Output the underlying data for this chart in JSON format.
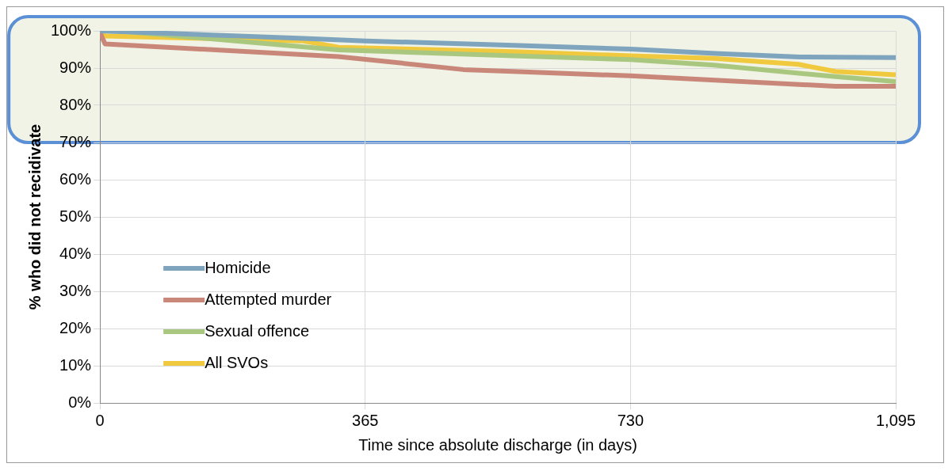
{
  "chart_data": {
    "type": "line",
    "xlabel": "Time since absolute discharge (in days)",
    "ylabel": "% who did not recidivate",
    "xlim": [
      0,
      1095
    ],
    "xticks": [
      0,
      365,
      730,
      {
        "value": 1095,
        "label": "1,095"
      }
    ],
    "ylim": [
      0,
      100
    ],
    "yticks": [
      {
        "value": 0,
        "label": "0%"
      },
      {
        "value": 10,
        "label": "10%"
      },
      {
        "value": 20,
        "label": "20%"
      },
      {
        "value": 30,
        "label": "30%"
      },
      {
        "value": 40,
        "label": "40%"
      },
      {
        "value": 50,
        "label": "50%"
      },
      {
        "value": 60,
        "label": "60%"
      },
      {
        "value": 70,
        "label": "70%"
      },
      {
        "value": 80,
        "label": "80%"
      },
      {
        "value": 90,
        "label": "90%"
      },
      {
        "value": 100,
        "label": "100%"
      }
    ],
    "grid": true,
    "legend": "bottom left",
    "marker": "none",
    "line_style": "solid",
    "bands": [
      {
        "axis": "y",
        "from": 70,
        "to": 100,
        "color": "#eef2e2"
      }
    ],
    "series": [
      {
        "name": "Homicide",
        "color": "#7fa4be",
        "x": [
          0,
          280,
          365,
          569,
          730,
          852,
          963,
          1095
        ],
        "values": [
          100,
          98,
          97.3,
          96.1,
          95.1,
          93.9,
          93,
          92.8
        ]
      },
      {
        "name": "Attempted murder",
        "color": "#c9877a",
        "x": [
          0,
          2,
          7,
          328,
          500,
          569,
          730,
          1012,
          1095
        ],
        "values": [
          100,
          98.6,
          96.5,
          93.1,
          89.6,
          89.1,
          87.9,
          85.1,
          85.1
        ]
      },
      {
        "name": "Sexual offence",
        "color": "#a9c77f",
        "x": [
          0,
          30,
          328,
          569,
          730,
          845,
          1012,
          1095
        ],
        "values": [
          100,
          99.9,
          94.9,
          93.3,
          92.3,
          90.8,
          87.7,
          86.4
        ]
      },
      {
        "name": "All SVOs",
        "color": "#f0c93e",
        "x": [
          0,
          7,
          280,
          328,
          569,
          730,
          845,
          961,
          1012,
          1095
        ],
        "values": [
          100,
          98.6,
          97.3,
          95.6,
          94.4,
          93.3,
          92.6,
          91,
          89.1,
          88.2
        ]
      }
    ]
  }
}
